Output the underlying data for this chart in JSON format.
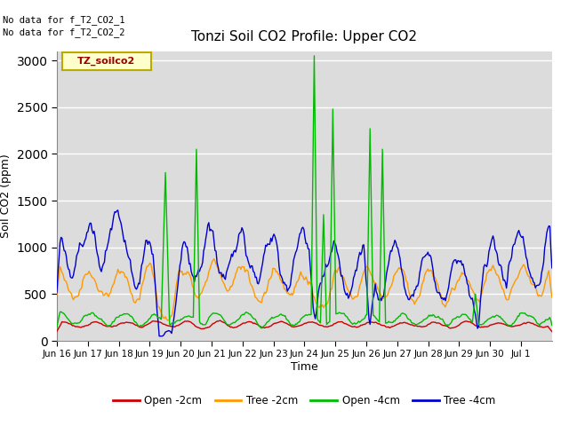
{
  "title": "Tonzi Soil CO2 Profile: Upper CO2",
  "ylabel": "Soil CO2 (ppm)",
  "xlabel": "Time",
  "no_data_text_1": "No data for f_T2_CO2_1",
  "no_data_text_2": "No data for f_T2_CO2_2",
  "legend_label": "TZ_soilco2",
  "ylim": [
    0,
    3100
  ],
  "yticks": [
    0,
    500,
    1000,
    1500,
    2000,
    2500,
    3000
  ],
  "colors": {
    "open_2cm": "#cc0000",
    "tree_2cm": "#ff9900",
    "open_4cm": "#00bb00",
    "tree_4cm": "#0000cc"
  },
  "bg_color": "#dcdcdc",
  "legend_box_facecolor": "#ffffcc",
  "legend_box_edgecolor": "#bbaa00",
  "tick_labels": [
    "Jun 16",
    "Jun 17",
    "Jun 18",
    "Jun 19",
    "Jun 20",
    "Jun 21",
    "Jun 22",
    "Jun 23",
    "Jun 24",
    "Jun 25",
    "Jun 26",
    "Jun 27",
    "Jun 28",
    "Jun 29",
    "Jun 30",
    "Jul 1"
  ],
  "n_days": 16,
  "n_pts": 480,
  "seed": 7
}
